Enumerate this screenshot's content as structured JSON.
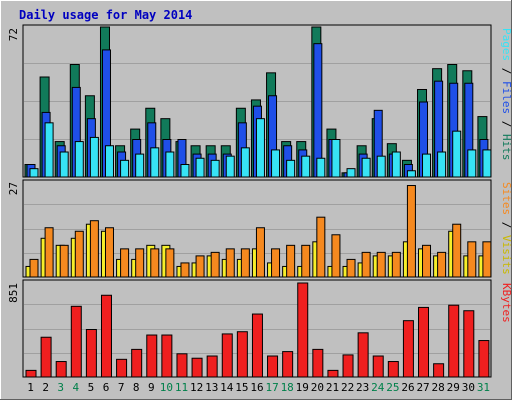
{
  "chart_data": [
    {
      "type": "bar",
      "title": "Daily usage for May 2014",
      "ylabel_max": "72",
      "categories": [
        "1",
        "2",
        "3",
        "4",
        "5",
        "6",
        "7",
        "8",
        "9",
        "10",
        "11",
        "12",
        "13",
        "14",
        "15",
        "16",
        "17",
        "18",
        "19",
        "20",
        "21",
        "22",
        "23",
        "24",
        "25",
        "26",
        "27",
        "28",
        "29",
        "30",
        "31"
      ],
      "weekend_days": [
        "3",
        "4",
        "10",
        "11",
        "17",
        "18",
        "24",
        "25",
        "31"
      ],
      "ylim": [
        0,
        72
      ],
      "series": [
        {
          "name": "Hits",
          "color": "#117a5a",
          "values": [
            6,
            48,
            17,
            54,
            39,
            72,
            15,
            23,
            33,
            28,
            17,
            15,
            15,
            15,
            33,
            37,
            50,
            17,
            17,
            72,
            23,
            2,
            15,
            28,
            16,
            8,
            42,
            52,
            54,
            51,
            29
          ]
        },
        {
          "name": "Files",
          "color": "#1f4fe8",
          "values": [
            6,
            31,
            15,
            43,
            28,
            61,
            12,
            18,
            26,
            18,
            18,
            11,
            11,
            11,
            26,
            34,
            39,
            15,
            13,
            64,
            18,
            2,
            11,
            32,
            11,
            6,
            36,
            46,
            45,
            45,
            18
          ]
        },
        {
          "name": "Pages",
          "color": "#37e3f5",
          "values": [
            4,
            26,
            12,
            17,
            19,
            15,
            8,
            11,
            14,
            12,
            6,
            9,
            8,
            10,
            14,
            28,
            13,
            8,
            10,
            9,
            18,
            4,
            9,
            10,
            12,
            3,
            11,
            12,
            22,
            13,
            13
          ]
        }
      ]
    },
    {
      "type": "bar",
      "ylabel_max": "27",
      "categories": [
        "1",
        "2",
        "3",
        "4",
        "5",
        "6",
        "7",
        "8",
        "9",
        "10",
        "11",
        "12",
        "13",
        "14",
        "15",
        "16",
        "17",
        "18",
        "19",
        "20",
        "21",
        "22",
        "23",
        "24",
        "25",
        "26",
        "27",
        "28",
        "29",
        "30",
        "31"
      ],
      "ylim": [
        0,
        27
      ],
      "series": [
        {
          "name": "Visits",
          "color": "#f6ef2a",
          "values": [
            3,
            11,
            9,
            11,
            15,
            13,
            5,
            5,
            9,
            9,
            3,
            4,
            6,
            5,
            5,
            8,
            4,
            3,
            3,
            10,
            3,
            3,
            4,
            6,
            6,
            10,
            8,
            6,
            13,
            6,
            6
          ]
        },
        {
          "name": "Sites",
          "color": "#f5891f",
          "values": [
            5,
            14,
            9,
            13,
            16,
            14,
            8,
            8,
            8,
            8,
            4,
            6,
            7,
            8,
            8,
            14,
            8,
            9,
            9,
            17,
            12,
            5,
            7,
            7,
            7,
            26,
            9,
            7,
            15,
            10,
            10
          ]
        }
      ]
    },
    {
      "type": "bar",
      "ylabel_max": "851",
      "categories": [
        "1",
        "2",
        "3",
        "4",
        "5",
        "6",
        "7",
        "8",
        "9",
        "10",
        "11",
        "12",
        "13",
        "14",
        "15",
        "16",
        "17",
        "18",
        "19",
        "20",
        "21",
        "22",
        "23",
        "24",
        "25",
        "26",
        "27",
        "28",
        "29",
        "30",
        "31"
      ],
      "ylim": [
        0,
        851
      ],
      "series": [
        {
          "name": "KBytes",
          "color": "#ef1f1f",
          "values": [
            60,
            360,
            140,
            640,
            430,
            740,
            160,
            250,
            380,
            380,
            210,
            170,
            190,
            390,
            410,
            570,
            190,
            230,
            851,
            250,
            60,
            200,
            400,
            190,
            140,
            510,
            630,
            120,
            650,
            600,
            330
          ]
        }
      ]
    }
  ]
}
